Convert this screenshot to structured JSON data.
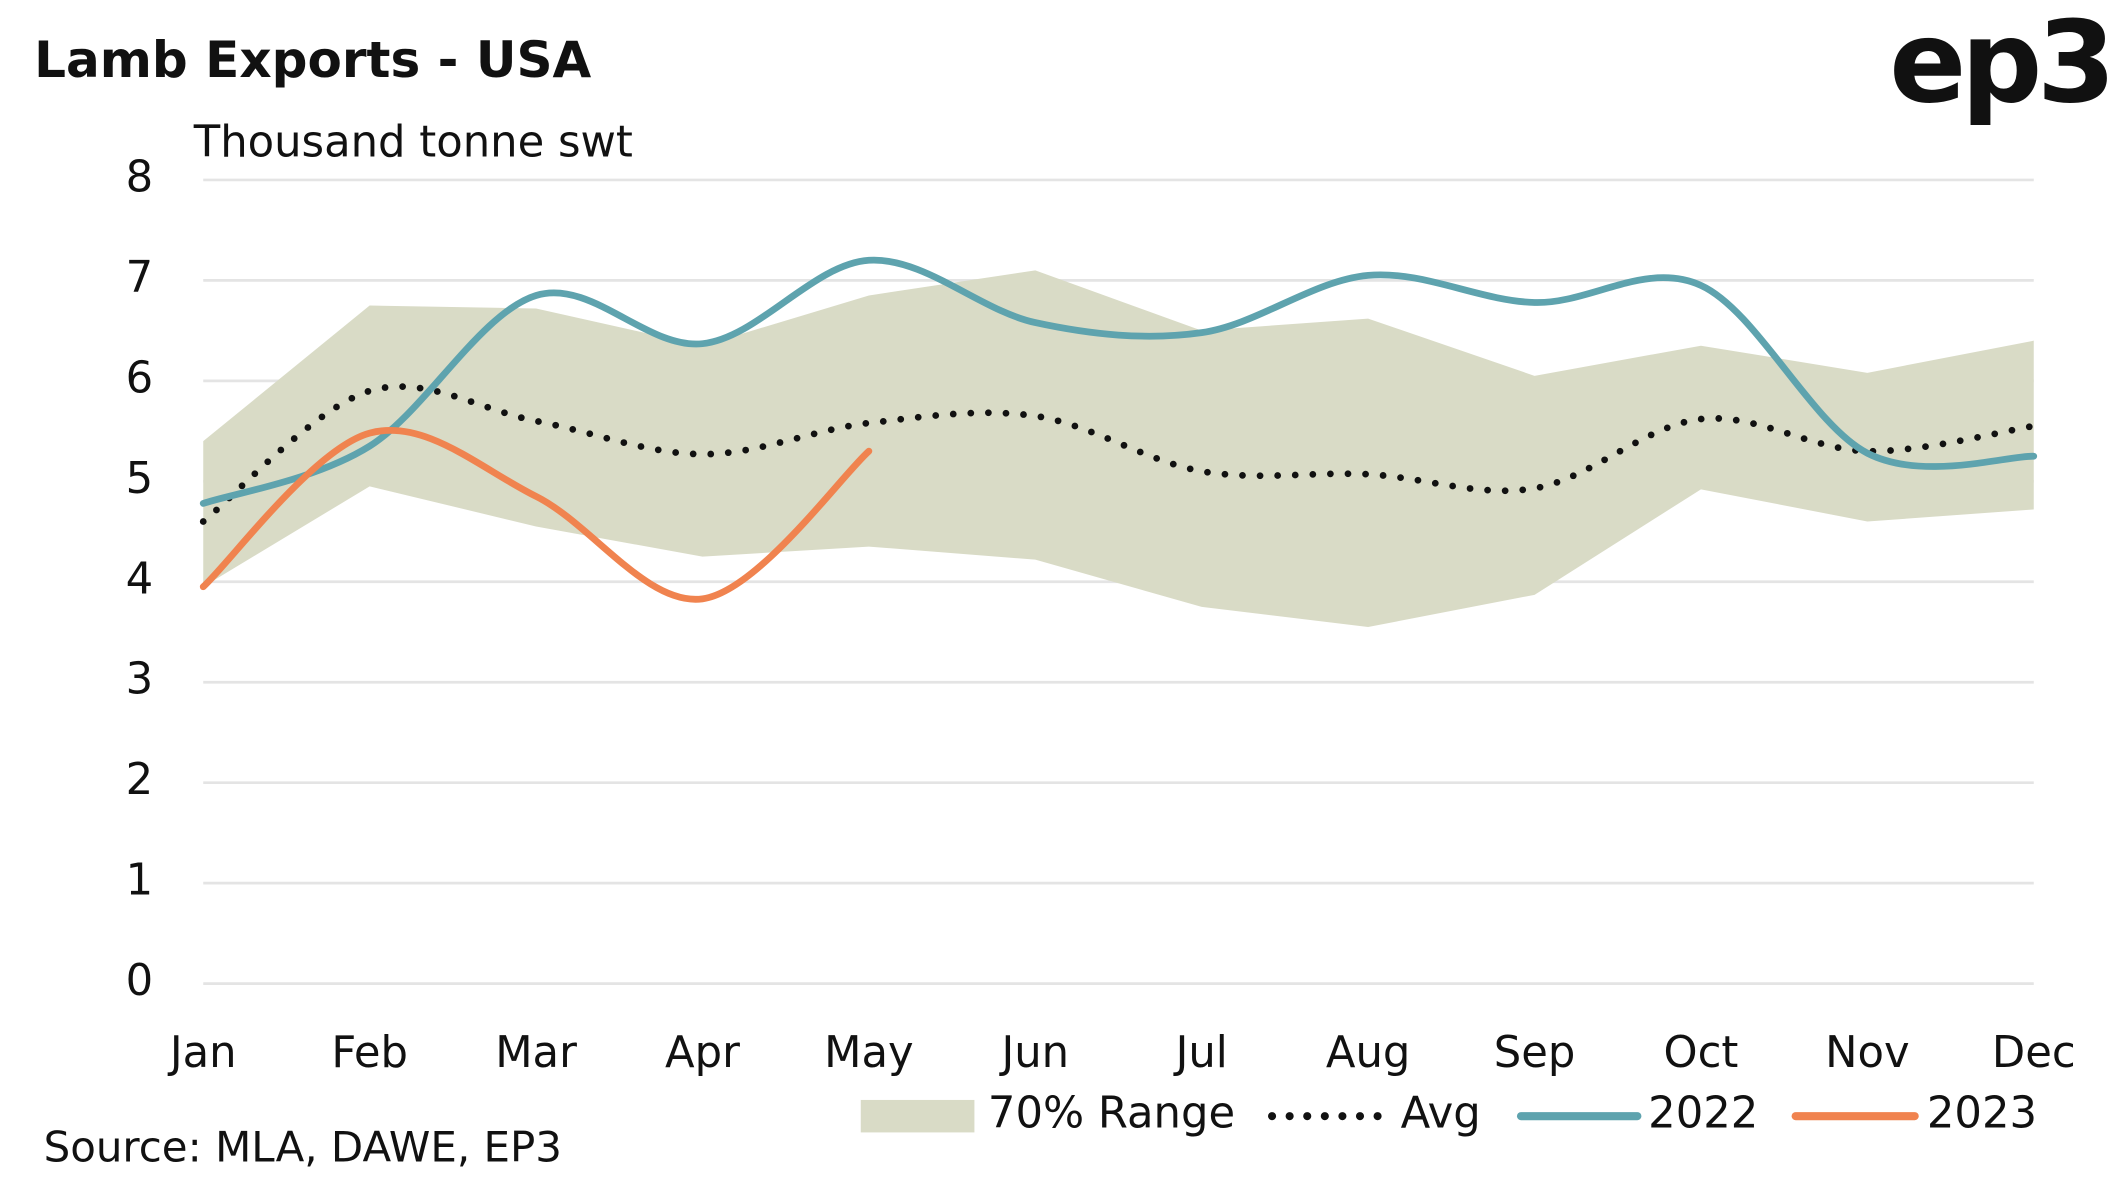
{
  "chart_data": {
    "type": "line",
    "title": "Lamb Exports - USA",
    "y_axis_label": "Thousand tonne swt",
    "source": "Source: MLA, DAWE, EP3",
    "logo": "ep3",
    "categories": [
      "Jan",
      "Feb",
      "Mar",
      "Apr",
      "May",
      "Jun",
      "Jul",
      "Aug",
      "Sep",
      "Oct",
      "Nov",
      "Dec"
    ],
    "ylim": [
      0,
      8
    ],
    "yticks": [
      0,
      1,
      2,
      3,
      4,
      5,
      6,
      7,
      8
    ],
    "grid": true,
    "legend": "bottom",
    "series": [
      {
        "name": "70% Range",
        "kind": "band",
        "color": "#d9dbc6",
        "low": [
          3.95,
          4.95,
          4.55,
          4.25,
          4.35,
          4.22,
          3.75,
          3.55,
          3.87,
          4.92,
          4.6,
          4.72
        ],
        "high": [
          5.4,
          6.75,
          6.72,
          6.35,
          6.85,
          7.1,
          6.5,
          6.62,
          6.05,
          6.35,
          6.08,
          6.4
        ]
      },
      {
        "name": "Avg",
        "kind": "dotted",
        "color": "#111111",
        "values": [
          4.6,
          5.9,
          5.6,
          5.27,
          5.58,
          5.65,
          5.1,
          5.07,
          4.93,
          5.62,
          5.3,
          5.55
        ]
      },
      {
        "name": "2022",
        "kind": "solid",
        "color": "#5ea3ae",
        "values": [
          4.78,
          5.35,
          6.85,
          6.37,
          7.2,
          6.58,
          6.48,
          7.05,
          6.78,
          6.95,
          5.28,
          5.25
        ]
      },
      {
        "name": "2023",
        "kind": "solid",
        "color": "#f0834f",
        "values": [
          3.95,
          5.48,
          4.85,
          3.83,
          5.3,
          null,
          null,
          null,
          null,
          null,
          null,
          null
        ]
      }
    ]
  }
}
